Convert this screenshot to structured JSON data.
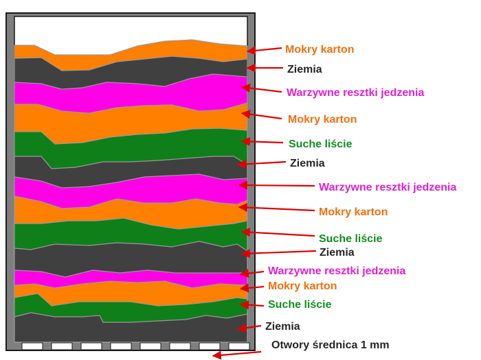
{
  "colors": {
    "frame": "#7f7f7f",
    "frame_outline": "#1a1a1a",
    "soil": "#404040",
    "cardboard": "#ff7f00",
    "food_scraps": "#ff00e6",
    "dry_leaves": "#0f7f1a",
    "arrow": "#e00000",
    "label_soil": "#262626",
    "label_cardboard": "#f07010",
    "label_food": "#e020d0",
    "label_leaves": "#109020"
  },
  "layers": [
    {
      "id": "cardboard-1",
      "kind": "cardboard",
      "label": "Mokry karton"
    },
    {
      "id": "soil-1",
      "kind": "soil",
      "label": "Ziemia"
    },
    {
      "id": "food-1",
      "kind": "food_scraps",
      "label": "Warzywne resztki jedzenia"
    },
    {
      "id": "cardboard-2",
      "kind": "cardboard",
      "label": "Mokry karton"
    },
    {
      "id": "leaves-1",
      "kind": "dry_leaves",
      "label": "Suche liście"
    },
    {
      "id": "soil-2",
      "kind": "soil",
      "label": "Ziemia"
    },
    {
      "id": "food-2",
      "kind": "food_scraps",
      "label": "Warzywne resztki jedzenia"
    },
    {
      "id": "cardboard-3",
      "kind": "cardboard",
      "label": "Mokry karton"
    },
    {
      "id": "leaves-2",
      "kind": "dry_leaves",
      "label": "Suche liście"
    },
    {
      "id": "soil-3",
      "kind": "soil",
      "label": "Ziemia"
    },
    {
      "id": "food-3",
      "kind": "food_scraps",
      "label": "Warzywne resztki jedzenia"
    },
    {
      "id": "cardboard-4",
      "kind": "cardboard",
      "label": "Mokry karton"
    },
    {
      "id": "leaves-3",
      "kind": "dry_leaves",
      "label": "Suche liście"
    },
    {
      "id": "soil-4",
      "kind": "soil",
      "label": "Ziemia"
    }
  ],
  "holes_label": "Otwory średnica 1 mm"
}
